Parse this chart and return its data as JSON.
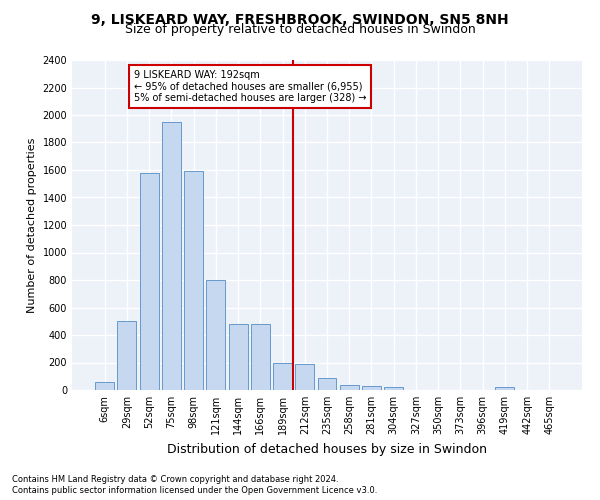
{
  "title1": "9, LISKEARD WAY, FRESHBROOK, SWINDON, SN5 8NH",
  "title2": "Size of property relative to detached houses in Swindon",
  "xlabel": "Distribution of detached houses by size in Swindon",
  "ylabel": "Number of detached properties",
  "footnote1": "Contains HM Land Registry data © Crown copyright and database right 2024.",
  "footnote2": "Contains public sector information licensed under the Open Government Licence v3.0.",
  "bar_labels": [
    "6sqm",
    "29sqm",
    "52sqm",
    "75sqm",
    "98sqm",
    "121sqm",
    "144sqm",
    "166sqm",
    "189sqm",
    "212sqm",
    "235sqm",
    "258sqm",
    "281sqm",
    "304sqm",
    "327sqm",
    "350sqm",
    "373sqm",
    "396sqm",
    "419sqm",
    "442sqm",
    "465sqm"
  ],
  "bar_values": [
    55,
    500,
    1580,
    1950,
    1590,
    800,
    480,
    480,
    200,
    190,
    90,
    35,
    30,
    20,
    0,
    0,
    0,
    0,
    20,
    0,
    0
  ],
  "bar_color": "#c5d8ef",
  "bar_edgecolor": "#6699cc",
  "vline_x": 8.45,
  "vline_color": "#cc0000",
  "annotation_line1": "9 LISKEARD WAY: 192sqm",
  "annotation_line2": "← 95% of detached houses are smaller (6,955)",
  "annotation_line3": "5% of semi-detached houses are larger (328) →",
  "annotation_box_edgecolor": "#cc0000",
  "ylim_max": 2400,
  "yticks": [
    0,
    200,
    400,
    600,
    800,
    1000,
    1200,
    1400,
    1600,
    1800,
    2000,
    2200,
    2400
  ],
  "bg_color": "#edf2f9",
  "grid_color": "#ffffff",
  "title1_fontsize": 10,
  "title2_fontsize": 9,
  "xlabel_fontsize": 9,
  "ylabel_fontsize": 8,
  "tick_fontsize": 7,
  "annot_fontsize": 7,
  "footnote_fontsize": 6
}
